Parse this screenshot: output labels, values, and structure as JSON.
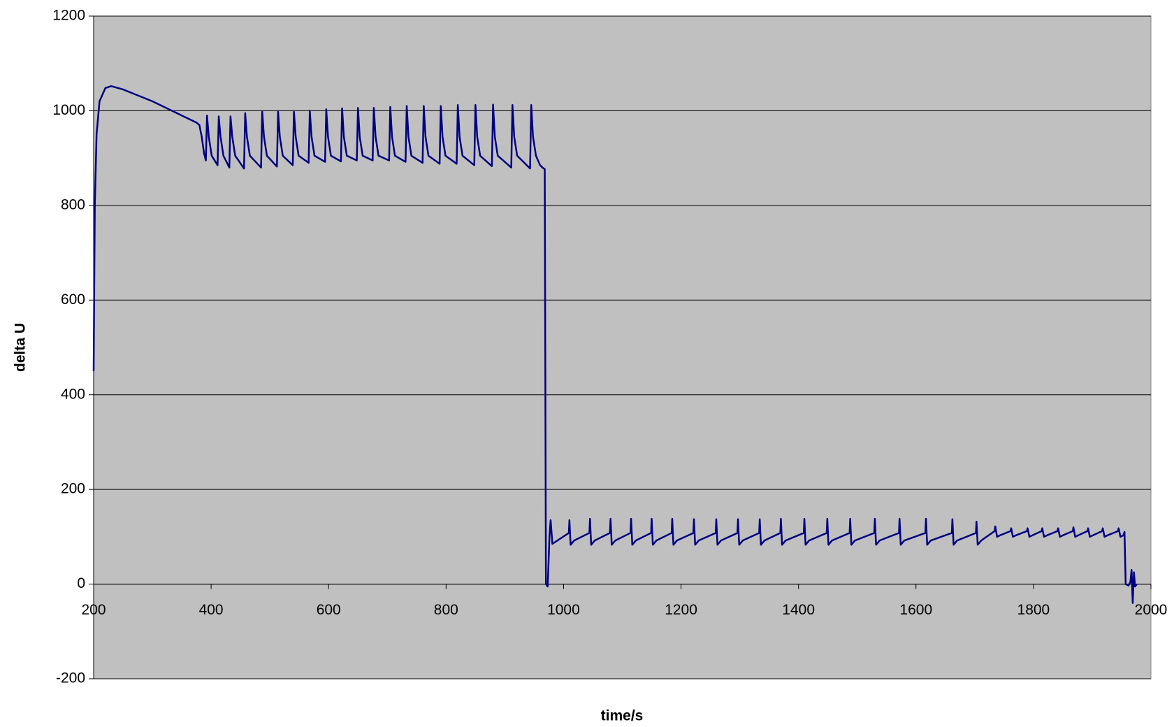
{
  "chart_data": {
    "type": "line",
    "xlabel": "time/s",
    "ylabel": "delta U",
    "xlim": [
      200,
      2000
    ],
    "xticks": [
      200,
      400,
      600,
      800,
      1000,
      1200,
      1400,
      1600,
      1800,
      2000
    ],
    "ylim": [
      -200,
      1200
    ],
    "yticks": [
      -200,
      0,
      200,
      400,
      600,
      800,
      1000,
      1200
    ],
    "grid": true,
    "background": "#c0c0c0",
    "series": [
      {
        "color": "#000080",
        "x": [
          200,
          202,
          205,
          210,
          220,
          230,
          250,
          300,
          350,
          375,
          380,
          384,
          388,
          391,
          393,
          396,
          401,
          411,
          413,
          416,
          421,
          431,
          433,
          436,
          441,
          456,
          458,
          461,
          466,
          485,
          487,
          490,
          495,
          512,
          514,
          517,
          522,
          539,
          541,
          544,
          549,
          566,
          568,
          571,
          576,
          594,
          596,
          599,
          604,
          621,
          623,
          626,
          631,
          648,
          650,
          653,
          658,
          675,
          677,
          680,
          685,
          703,
          705,
          708,
          713,
          731,
          733,
          736,
          741,
          760,
          762,
          765,
          770,
          789,
          791,
          794,
          799,
          818,
          820,
          823,
          828,
          848,
          850,
          853,
          858,
          878,
          880,
          883,
          888,
          911,
          913,
          916,
          921,
          943,
          945,
          948,
          953,
          960,
          966,
          968,
          970,
          973,
          976,
          978,
          981,
          1009,
          1010,
          1012,
          1018,
          1044,
          1045,
          1047,
          1053,
          1079,
          1080,
          1082,
          1088,
          1114,
          1115,
          1117,
          1123,
          1149,
          1150,
          1152,
          1158,
          1184,
          1185,
          1187,
          1193,
          1221,
          1222,
          1224,
          1230,
          1259,
          1260,
          1262,
          1268,
          1296,
          1297,
          1299,
          1305,
          1333,
          1334,
          1336,
          1342,
          1369,
          1370,
          1372,
          1378,
          1409,
          1410,
          1412,
          1418,
          1448,
          1449,
          1451,
          1457,
          1487,
          1488,
          1490,
          1496,
          1529,
          1530,
          1532,
          1538,
          1571,
          1572,
          1574,
          1580,
          1616,
          1617,
          1619,
          1625,
          1661,
          1662,
          1664,
          1670,
          1702,
          1703,
          1705,
          1711,
          1734,
          1735,
          1738,
          1743,
          1761,
          1762,
          1765,
          1770,
          1789,
          1790,
          1793,
          1798,
          1814,
          1815,
          1818,
          1823,
          1841,
          1842,
          1845,
          1850,
          1867,
          1868,
          1871,
          1876,
          1892,
          1893,
          1896,
          1901,
          1917,
          1918,
          1921,
          1926,
          1944,
          1945,
          1948,
          1953,
          1955,
          1957,
          1962,
          1965,
          1967,
          1969,
          1971,
          1973,
          1976
        ],
        "values": [
          450,
          800,
          950,
          1020,
          1048,
          1052,
          1045,
          1020,
          990,
          975,
          970,
          945,
          910,
          895,
          990,
          945,
          905,
          885,
          988,
          945,
          905,
          880,
          988,
          945,
          905,
          878,
          995,
          945,
          905,
          880,
          998,
          945,
          905,
          882,
          998,
          945,
          905,
          885,
          998,
          945,
          905,
          890,
          1000,
          945,
          905,
          892,
          1003,
          945,
          905,
          893,
          1005,
          945,
          905,
          895,
          1006,
          945,
          905,
          895,
          1006,
          945,
          905,
          895,
          1008,
          945,
          905,
          892,
          1010,
          945,
          905,
          890,
          1010,
          945,
          905,
          888,
          1010,
          945,
          905,
          888,
          1012,
          945,
          905,
          885,
          1012,
          945,
          905,
          883,
          1013,
          945,
          905,
          880,
          1012,
          945,
          905,
          878,
          1012,
          945,
          905,
          885,
          878,
          877,
          0,
          -5,
          100,
          135,
          85,
          108,
          135,
          83,
          92,
          108,
          138,
          83,
          92,
          108,
          138,
          83,
          92,
          108,
          138,
          83,
          92,
          108,
          138,
          83,
          92,
          108,
          138,
          83,
          92,
          108,
          137,
          83,
          92,
          108,
          137,
          83,
          92,
          108,
          137,
          83,
          92,
          108,
          137,
          83,
          92,
          108,
          138,
          83,
          92,
          108,
          138,
          83,
          92,
          108,
          138,
          83,
          92,
          108,
          138,
          83,
          92,
          108,
          138,
          83,
          92,
          108,
          138,
          83,
          92,
          108,
          138,
          83,
          92,
          108,
          137,
          83,
          92,
          108,
          132,
          83,
          92,
          112,
          122,
          100,
          103,
          112,
          118,
          100,
          103,
          112,
          118,
          100,
          103,
          112,
          118,
          100,
          103,
          112,
          118,
          100,
          103,
          112,
          120,
          100,
          103,
          112,
          118,
          100,
          103,
          112,
          118,
          100,
          103,
          112,
          118,
          100,
          103,
          110,
          0,
          -3,
          5,
          30,
          -40,
          25,
          -5,
          0
        ]
      }
    ]
  }
}
